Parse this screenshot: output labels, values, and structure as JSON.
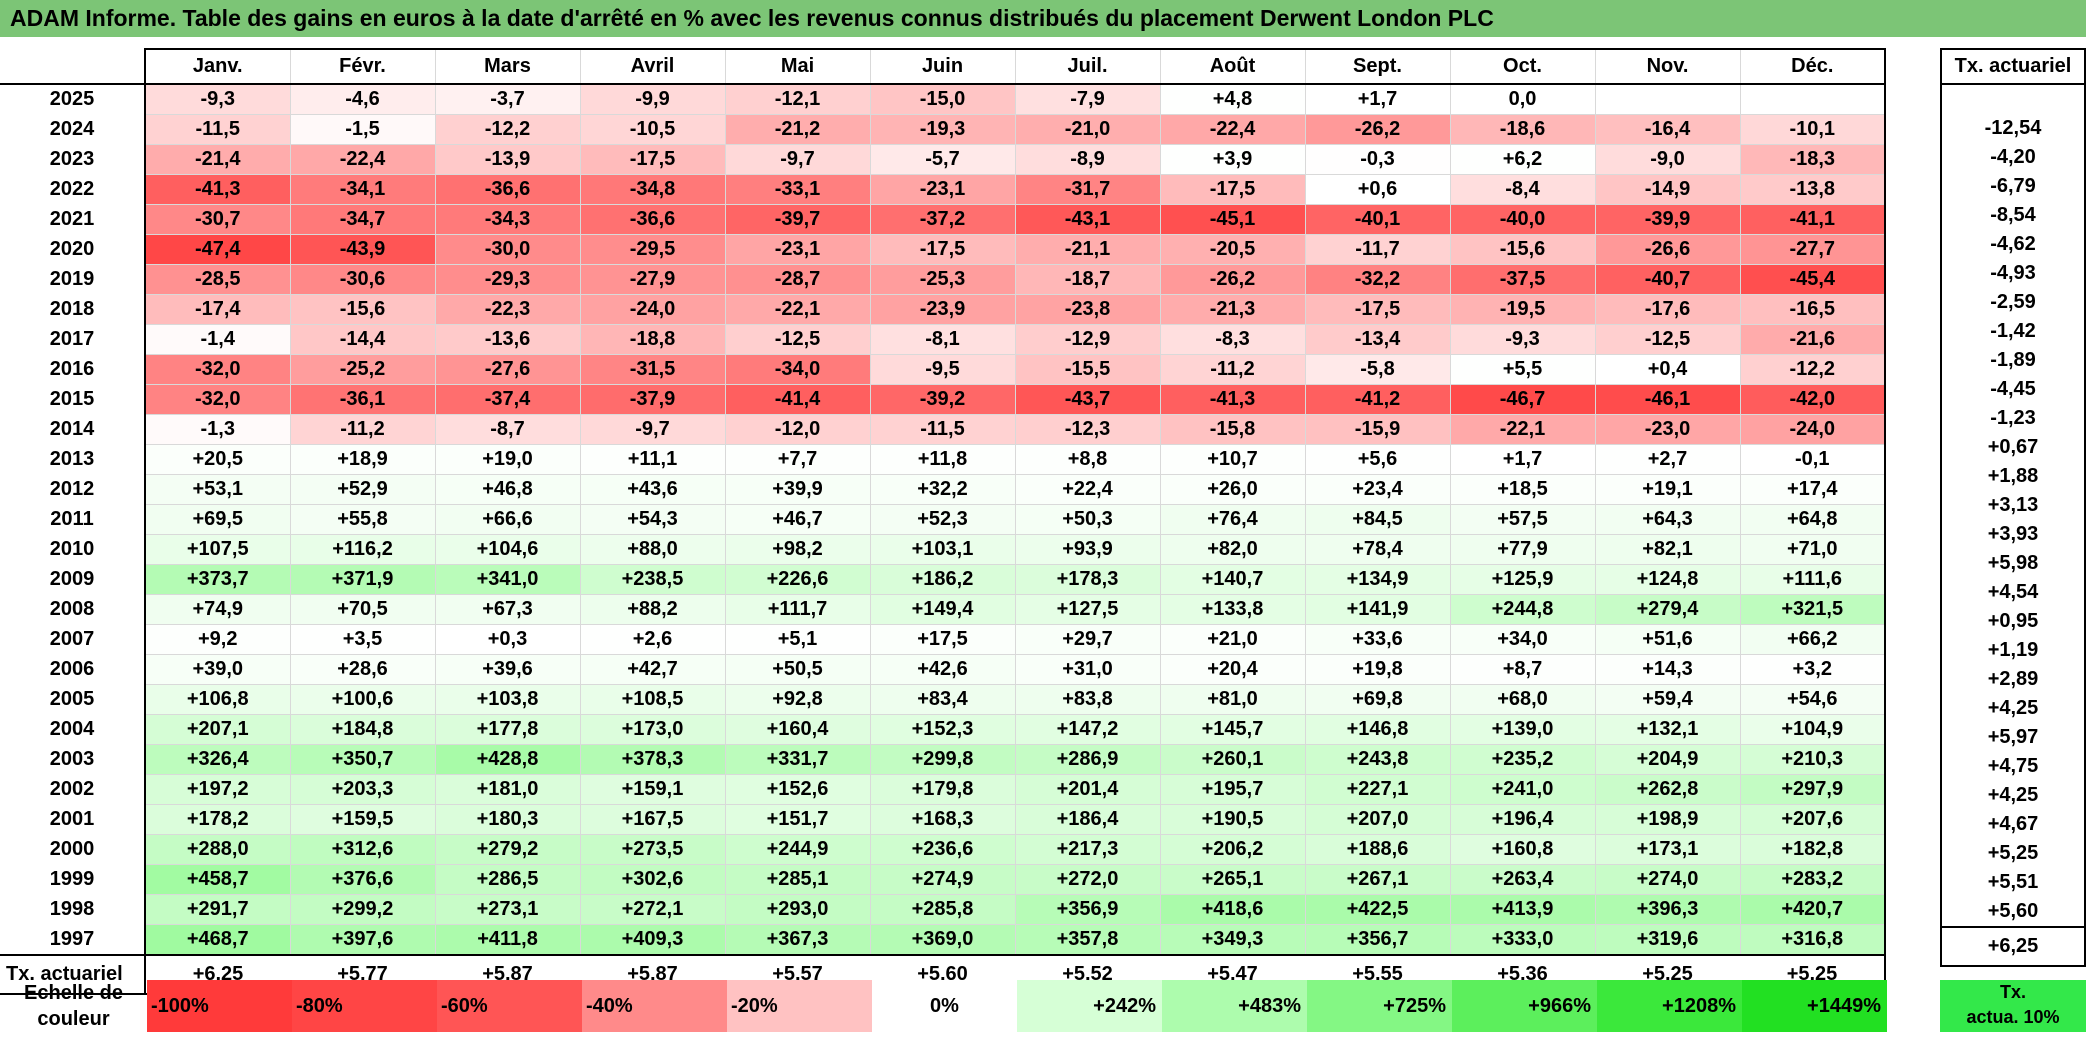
{
  "title": "ADAM Informe. Table des gains en euros à la date d'arrêté en % avec les revenus connus distribués du placement Derwent London PLC",
  "months": [
    "Janv.",
    "Févr.",
    "Mars",
    "Avril",
    "Mai",
    "Juin",
    "Juil.",
    "Août",
    "Sept.",
    "Oct.",
    "Nov.",
    "Déc."
  ],
  "side_header": "Tx. actuariel",
  "rows": [
    {
      "year": "2025",
      "values": [
        "-9,3",
        "-4,6",
        "-3,7",
        "-9,9",
        "-12,1",
        "-15,0",
        "-7,9",
        "+4,8",
        "+1,7",
        "0,0",
        "",
        ""
      ],
      "tx": ""
    },
    {
      "year": "2024",
      "values": [
        "-11,5",
        "-1,5",
        "-12,2",
        "-10,5",
        "-21,2",
        "-19,3",
        "-21,0",
        "-22,4",
        "-26,2",
        "-18,6",
        "-16,4",
        "-10,1"
      ],
      "tx": "-12,54"
    },
    {
      "year": "2023",
      "values": [
        "-21,4",
        "-22,4",
        "-13,9",
        "-17,5",
        "-9,7",
        "-5,7",
        "-8,9",
        "+3,9",
        "-0,3",
        "+6,2",
        "-9,0",
        "-18,3"
      ],
      "tx": "-4,20"
    },
    {
      "year": "2022",
      "values": [
        "-41,3",
        "-34,1",
        "-36,6",
        "-34,8",
        "-33,1",
        "-23,1",
        "-31,7",
        "-17,5",
        "+0,6",
        "-8,4",
        "-14,9",
        "-13,8"
      ],
      "tx": "-6,79"
    },
    {
      "year": "2021",
      "values": [
        "-30,7",
        "-34,7",
        "-34,3",
        "-36,6",
        "-39,7",
        "-37,2",
        "-43,1",
        "-45,1",
        "-40,1",
        "-40,0",
        "-39,9",
        "-41,1"
      ],
      "tx": "-8,54"
    },
    {
      "year": "2020",
      "values": [
        "-47,4",
        "-43,9",
        "-30,0",
        "-29,5",
        "-23,1",
        "-17,5",
        "-21,1",
        "-20,5",
        "-11,7",
        "-15,6",
        "-26,6",
        "-27,7"
      ],
      "tx": "-4,62"
    },
    {
      "year": "2019",
      "values": [
        "-28,5",
        "-30,6",
        "-29,3",
        "-27,9",
        "-28,7",
        "-25,3",
        "-18,7",
        "-26,2",
        "-32,2",
        "-37,5",
        "-40,7",
        "-45,4"
      ],
      "tx": "-4,93"
    },
    {
      "year": "2018",
      "values": [
        "-17,4",
        "-15,6",
        "-22,3",
        "-24,0",
        "-22,1",
        "-23,9",
        "-23,8",
        "-21,3",
        "-17,5",
        "-19,5",
        "-17,6",
        "-16,5"
      ],
      "tx": "-2,59"
    },
    {
      "year": "2017",
      "values": [
        "-1,4",
        "-14,4",
        "-13,6",
        "-18,8",
        "-12,5",
        "-8,1",
        "-12,9",
        "-8,3",
        "-13,4",
        "-9,3",
        "-12,5",
        "-21,6"
      ],
      "tx": "-1,42"
    },
    {
      "year": "2016",
      "values": [
        "-32,0",
        "-25,2",
        "-27,6",
        "-31,5",
        "-34,0",
        "-9,5",
        "-15,5",
        "-11,2",
        "-5,8",
        "+5,5",
        "+0,4",
        "-12,2"
      ],
      "tx": "-1,89"
    },
    {
      "year": "2015",
      "values": [
        "-32,0",
        "-36,1",
        "-37,4",
        "-37,9",
        "-41,4",
        "-39,2",
        "-43,7",
        "-41,3",
        "-41,2",
        "-46,7",
        "-46,1",
        "-42,0"
      ],
      "tx": "-4,45"
    },
    {
      "year": "2014",
      "values": [
        "-1,3",
        "-11,2",
        "-8,7",
        "-9,7",
        "-12,0",
        "-11,5",
        "-12,3",
        "-15,8",
        "-15,9",
        "-22,1",
        "-23,0",
        "-24,0"
      ],
      "tx": "-1,23"
    },
    {
      "year": "2013",
      "values": [
        "+20,5",
        "+18,9",
        "+19,0",
        "+11,1",
        "+7,7",
        "+11,8",
        "+8,8",
        "+10,7",
        "+5,6",
        "+1,7",
        "+2,7",
        "-0,1"
      ],
      "tx": "+0,67"
    },
    {
      "year": "2012",
      "values": [
        "+53,1",
        "+52,9",
        "+46,8",
        "+43,6",
        "+39,9",
        "+32,2",
        "+22,4",
        "+26,0",
        "+23,4",
        "+18,5",
        "+19,1",
        "+17,4"
      ],
      "tx": "+1,88"
    },
    {
      "year": "2011",
      "values": [
        "+69,5",
        "+55,8",
        "+66,6",
        "+54,3",
        "+46,7",
        "+52,3",
        "+50,3",
        "+76,4",
        "+84,5",
        "+57,5",
        "+64,3",
        "+64,8"
      ],
      "tx": "+3,13"
    },
    {
      "year": "2010",
      "values": [
        "+107,5",
        "+116,2",
        "+104,6",
        "+88,0",
        "+98,2",
        "+103,1",
        "+93,9",
        "+82,0",
        "+78,4",
        "+77,9",
        "+82,1",
        "+71,0"
      ],
      "tx": "+3,93"
    },
    {
      "year": "2009",
      "values": [
        "+373,7",
        "+371,9",
        "+341,0",
        "+238,5",
        "+226,6",
        "+186,2",
        "+178,3",
        "+140,7",
        "+134,9",
        "+125,9",
        "+124,8",
        "+111,6"
      ],
      "tx": "+5,98"
    },
    {
      "year": "2008",
      "values": [
        "+74,9",
        "+70,5",
        "+67,3",
        "+88,2",
        "+111,7",
        "+149,4",
        "+127,5",
        "+133,8",
        "+141,9",
        "+244,8",
        "+279,4",
        "+321,5"
      ],
      "tx": "+4,54"
    },
    {
      "year": "2007",
      "values": [
        "+9,2",
        "+3,5",
        "+0,3",
        "+2,6",
        "+5,1",
        "+17,5",
        "+29,7",
        "+21,0",
        "+33,6",
        "+34,0",
        "+51,6",
        "+66,2"
      ],
      "tx": "+0,95"
    },
    {
      "year": "2006",
      "values": [
        "+39,0",
        "+28,6",
        "+39,6",
        "+42,7",
        "+50,5",
        "+42,6",
        "+31,0",
        "+20,4",
        "+19,8",
        "+8,7",
        "+14,3",
        "+3,2"
      ],
      "tx": "+1,19"
    },
    {
      "year": "2005",
      "values": [
        "+106,8",
        "+100,6",
        "+103,8",
        "+108,5",
        "+92,8",
        "+83,4",
        "+83,8",
        "+81,0",
        "+69,8",
        "+68,0",
        "+59,4",
        "+54,6"
      ],
      "tx": "+2,89"
    },
    {
      "year": "2004",
      "values": [
        "+207,1",
        "+184,8",
        "+177,8",
        "+173,0",
        "+160,4",
        "+152,3",
        "+147,2",
        "+145,7",
        "+146,8",
        "+139,0",
        "+132,1",
        "+104,9"
      ],
      "tx": "+4,25"
    },
    {
      "year": "2003",
      "values": [
        "+326,4",
        "+350,7",
        "+428,8",
        "+378,3",
        "+331,7",
        "+299,8",
        "+286,9",
        "+260,1",
        "+243,8",
        "+235,2",
        "+204,9",
        "+210,3"
      ],
      "tx": "+5,97"
    },
    {
      "year": "2002",
      "values": [
        "+197,2",
        "+203,3",
        "+181,0",
        "+159,1",
        "+152,6",
        "+179,8",
        "+201,4",
        "+195,7",
        "+227,1",
        "+241,0",
        "+262,8",
        "+297,9"
      ],
      "tx": "+4,75"
    },
    {
      "year": "2001",
      "values": [
        "+178,2",
        "+159,5",
        "+180,3",
        "+167,5",
        "+151,7",
        "+168,3",
        "+186,4",
        "+190,5",
        "+207,0",
        "+196,4",
        "+198,9",
        "+207,6"
      ],
      "tx": "+4,25"
    },
    {
      "year": "2000",
      "values": [
        "+288,0",
        "+312,6",
        "+279,2",
        "+273,5",
        "+244,9",
        "+236,6",
        "+217,3",
        "+206,2",
        "+188,6",
        "+160,8",
        "+173,1",
        "+182,8"
      ],
      "tx": "+4,67"
    },
    {
      "year": "1999",
      "values": [
        "+458,7",
        "+376,6",
        "+286,5",
        "+302,6",
        "+285,1",
        "+274,9",
        "+272,0",
        "+265,1",
        "+267,1",
        "+263,4",
        "+274,0",
        "+283,2"
      ],
      "tx": "+5,25"
    },
    {
      "year": "1998",
      "values": [
        "+291,7",
        "+299,2",
        "+273,1",
        "+272,1",
        "+293,0",
        "+285,8",
        "+356,9",
        "+418,6",
        "+422,5",
        "+413,9",
        "+396,3",
        "+420,7"
      ],
      "tx": "+5,51"
    },
    {
      "year": "1997",
      "values": [
        "+468,7",
        "+397,6",
        "+411,8",
        "+409,3",
        "+367,3",
        "+369,0",
        "+357,8",
        "+349,3",
        "+356,7",
        "+333,0",
        "+319,6",
        "+316,8"
      ],
      "tx": "+5,60"
    }
  ],
  "totals": {
    "label": "Tx. actuariel",
    "values": [
      "+6,25",
      "+5,77",
      "+5,87",
      "+5,87",
      "+5,57",
      "+5,60",
      "+5,52",
      "+5,47",
      "+5,55",
      "+5,36",
      "+5,25",
      "+5,25"
    ],
    "tx": "+6,25"
  },
  "legend": {
    "label": "Echelle de couleur",
    "swatches": [
      {
        "text": "-100%",
        "color": "#ff3a3a",
        "align": "left"
      },
      {
        "text": "-80%",
        "color": "#ff4545",
        "align": "left"
      },
      {
        "text": "-60%",
        "color": "#ff5555",
        "align": "left"
      },
      {
        "text": "-40%",
        "color": "#ff8a8a",
        "align": "left"
      },
      {
        "text": "-20%",
        "color": "#ffc2c2",
        "align": "left"
      },
      {
        "text": "0%",
        "color": "#ffffff",
        "align": "center"
      },
      {
        "text": "+242%",
        "color": "#d6ffd6",
        "align": "right"
      },
      {
        "text": "+483%",
        "color": "#adfcad",
        "align": "right"
      },
      {
        "text": "+725%",
        "color": "#84f784",
        "align": "right"
      },
      {
        "text": "+966%",
        "color": "#5cef5c",
        "align": "right"
      },
      {
        "text": "+1208%",
        "color": "#3be83b",
        "align": "right"
      },
      {
        "text": "+1449%",
        "color": "#22e022",
        "align": "right"
      }
    ],
    "tx_label_line1": "Tx.",
    "tx_label_line2": "actua. 10%",
    "tx_color": "#33e84a"
  },
  "colors": {
    "title_bg": "#7cc576",
    "negative_full": "#ff4545",
    "positive_full": "#77f077"
  }
}
